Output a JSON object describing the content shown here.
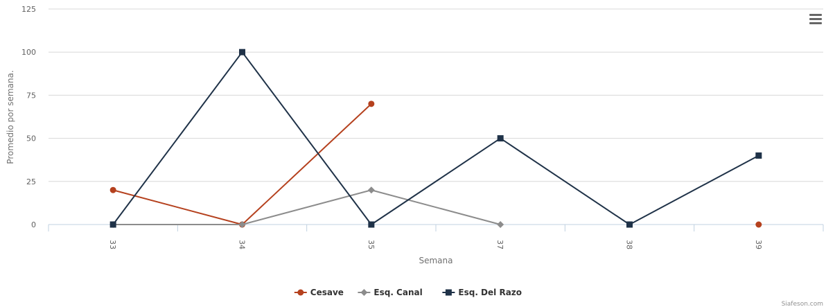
{
  "chart_data": {
    "type": "line",
    "categories": [
      "33",
      "34",
      "35",
      "37",
      "38",
      "39"
    ],
    "series": [
      {
        "name": "Cesave",
        "color": "#b5411e",
        "marker": "circle",
        "values": [
          20,
          0,
          70,
          null,
          null,
          0
        ]
      },
      {
        "name": "Esq. Canal",
        "color": "#8c8c8c",
        "marker": "diamond",
        "values": [
          0,
          0,
          20,
          0,
          null,
          null
        ]
      },
      {
        "name": "Esq. Del Razo",
        "color": "#1f3248",
        "marker": "square",
        "values": [
          0,
          100,
          0,
          50,
          0,
          40
        ]
      }
    ],
    "xlabel": "Semana",
    "ylabel": "Promedio por semana.",
    "ylim": [
      0,
      125
    ],
    "yticks": [
      0,
      25,
      50,
      75,
      100,
      125
    ],
    "grid": true,
    "legend": "bottom-center"
  },
  "credits": "Siafeson.com",
  "menu_icon": "hamburger-menu-icon"
}
